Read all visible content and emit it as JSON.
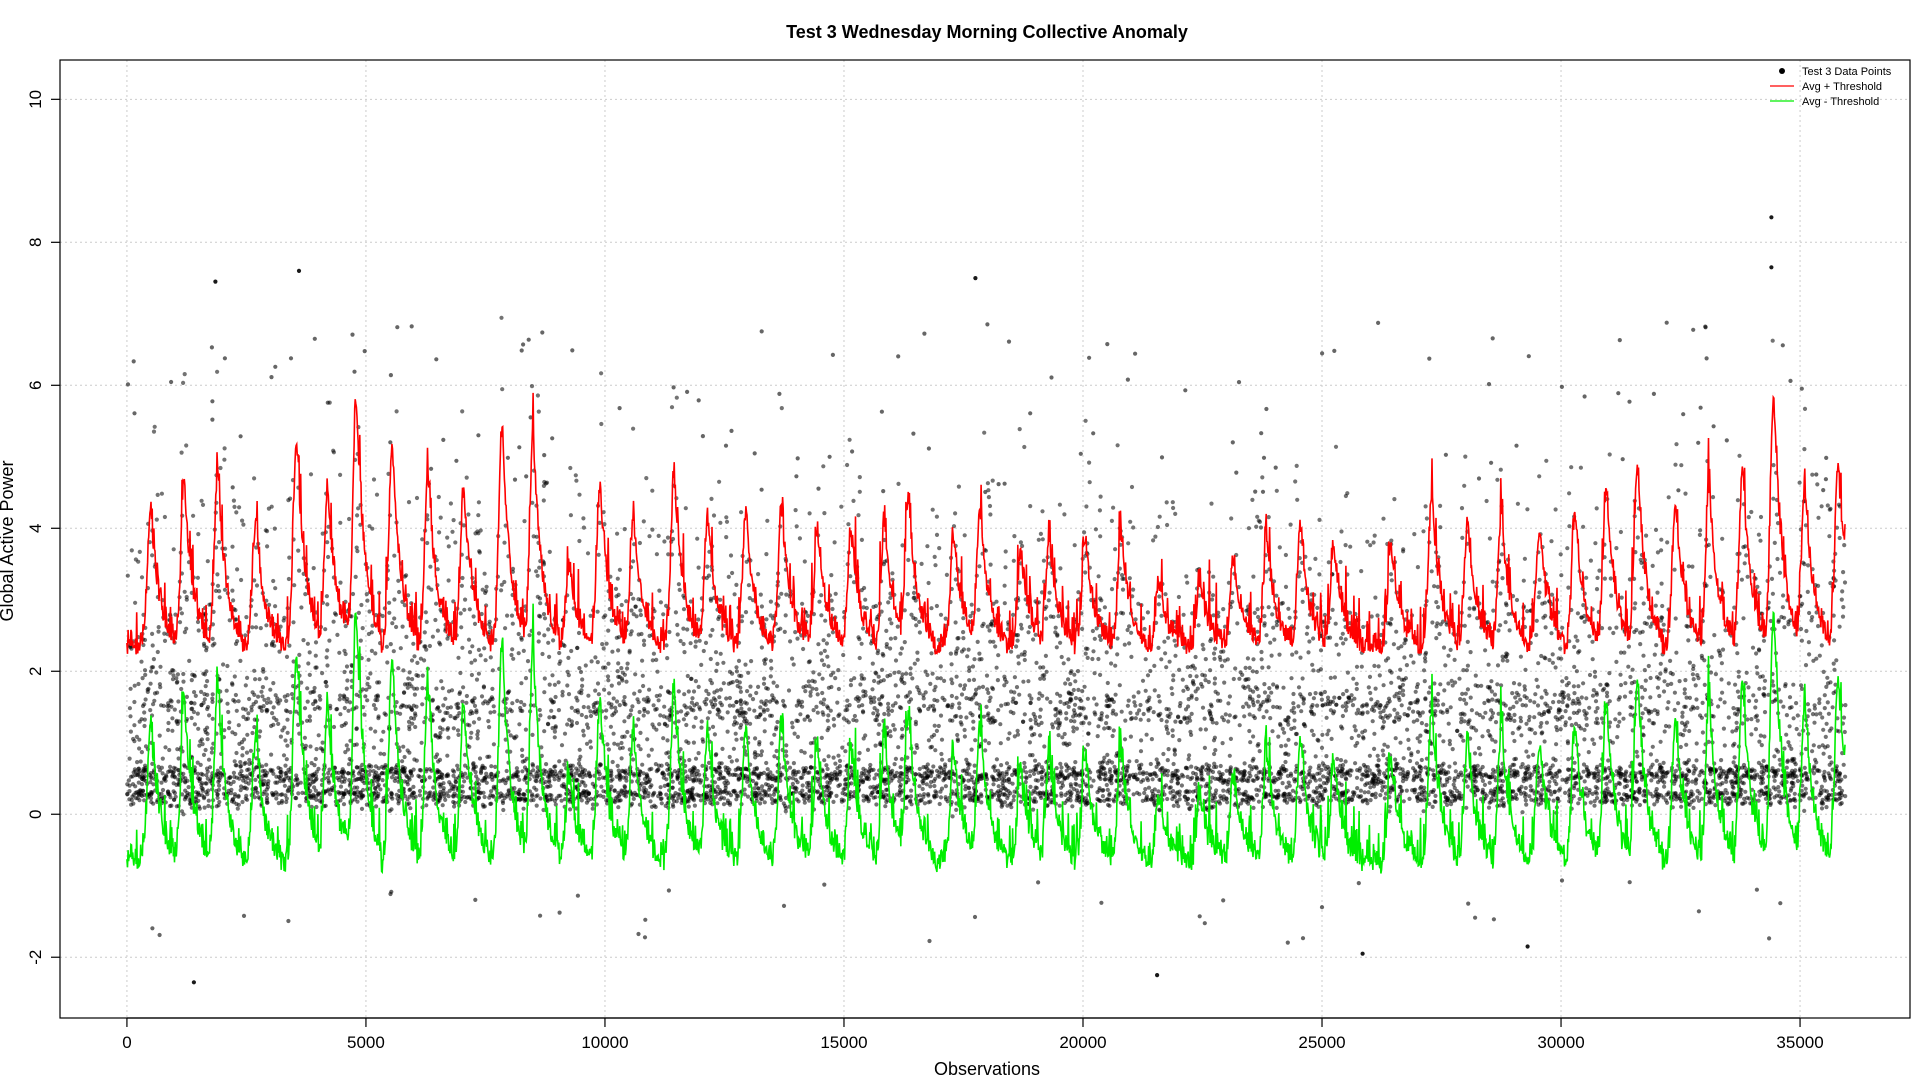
{
  "chart_data": {
    "type": "scatter",
    "title": "Test 3 Wednesday Morning Collective Anomaly",
    "xlabel": "Observations",
    "ylabel": "Global Active Power",
    "xlim": [
      -1400,
      37300
    ],
    "ylim": [
      -2.85,
      10.55
    ],
    "x_ticks": [
      0,
      5000,
      10000,
      15000,
      20000,
      25000,
      30000,
      35000
    ],
    "x_tick_labels": [
      "0",
      "5000",
      "10000",
      "15000",
      "20000",
      "25000",
      "30000",
      "35000"
    ],
    "y_ticks": [
      -2,
      0,
      2,
      4,
      6,
      8,
      10
    ],
    "y_tick_labels": [
      "-2",
      "0",
      "2",
      "4",
      "6",
      "8",
      "10"
    ],
    "grid": true,
    "legend_position": "top-right",
    "colors": {
      "points": "#000000",
      "upper": "#ff0000",
      "lower": "#00ee00",
      "grid": "#cccccc"
    },
    "legend": [
      {
        "label": "Test 3 Data Points",
        "kind": "point",
        "color": "#000000"
      },
      {
        "label": "Avg + Threshold",
        "kind": "line",
        "color": "#ff0000"
      },
      {
        "label": "Avg - Threshold",
        "kind": "line",
        "color": "#00ee00"
      }
    ],
    "x_max_observation": 35950,
    "daily_peak_observations": [
      500,
      1200,
      1900,
      2700,
      3550,
      4200,
      4800,
      5550,
      6300,
      7050,
      7850,
      8500,
      9250,
      9900,
      10600,
      11450,
      12150,
      12950,
      13700,
      14450,
      15150,
      15850,
      16350,
      17300,
      17850,
      18700,
      19300,
      20050,
      20800,
      21600,
      22450,
      23150,
      23850,
      24550,
      25250,
      26450,
      27300,
      28050,
      28750,
      29550,
      30300,
      30950,
      31600,
      32400,
      33100,
      33800,
      34450,
      35100,
      35800
    ],
    "upper_peak_values": [
      4.3,
      4.6,
      4.8,
      4.1,
      5.3,
      4.6,
      5.8,
      5.2,
      4.8,
      4.6,
      5.4,
      5.4,
      3.5,
      4.6,
      4.2,
      4.8,
      4.2,
      4.2,
      4.3,
      4.0,
      4.0,
      4.1,
      4.5,
      3.9,
      4.3,
      3.7,
      3.9,
      3.9,
      4.0,
      3.2,
      3.3,
      3.6,
      3.9,
      4.0,
      3.8,
      3.8,
      4.5,
      4.1,
      4.2,
      4.0,
      4.2,
      4.6,
      4.9,
      4.4,
      4.6,
      4.8,
      5.9,
      4.6,
      4.9
    ],
    "upper_baseline": 2.35,
    "lower_baseline": -0.65,
    "series": [
      {
        "name": "Test 3 Data Points",
        "kind": "points",
        "value_range": [
          -2.35,
          8.35
        ],
        "dense_bands": [
          0.25,
          0.55,
          1.5
        ]
      },
      {
        "name": "Avg + Threshold",
        "kind": "line",
        "value_range": [
          2.1,
          5.9
        ]
      },
      {
        "name": "Avg - Threshold",
        "kind": "line",
        "value_range": [
          -0.95,
          2.9
        ]
      }
    ],
    "notable_points": [
      {
        "x": 34400,
        "y": 8.35
      },
      {
        "x": 34400,
        "y": 7.65
      },
      {
        "x": 17750,
        "y": 7.5
      },
      {
        "x": 3600,
        "y": 7.6
      },
      {
        "x": 1850,
        "y": 7.45
      },
      {
        "x": 1400,
        "y": -2.35
      },
      {
        "x": 21550,
        "y": -2.25
      },
      {
        "x": 25850,
        "y": -1.95
      },
      {
        "x": 29300,
        "y": -1.85
      }
    ]
  }
}
